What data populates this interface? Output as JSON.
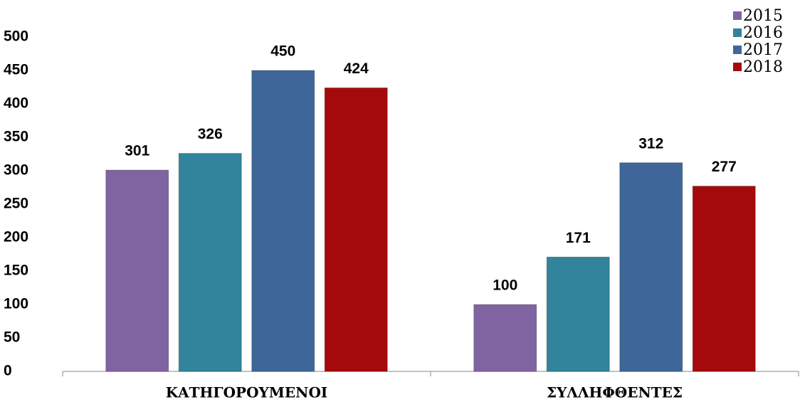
{
  "chart_data": {
    "type": "bar",
    "categories": [
      "ΚΑΤΗΓΟΡΟΥΜΕΝΟΙ",
      "ΣΥΛΛΗΦΘΕΝΤΕΣ"
    ],
    "series": [
      {
        "name": "2015",
        "color": "#8064a2",
        "values": [
          301,
          100
        ]
      },
      {
        "name": "2016",
        "color": "#31849b",
        "values": [
          326,
          171
        ]
      },
      {
        "name": "2017",
        "color": "#3f6699",
        "values": [
          450,
          312
        ]
      },
      {
        "name": "2018",
        "color": "#a50a0a",
        "values": [
          424,
          277
        ]
      }
    ],
    "ylim": [
      0,
      500
    ],
    "yticks": [
      0,
      50,
      100,
      150,
      200,
      250,
      300,
      350,
      400,
      450,
      500
    ],
    "legend": "top-right"
  }
}
